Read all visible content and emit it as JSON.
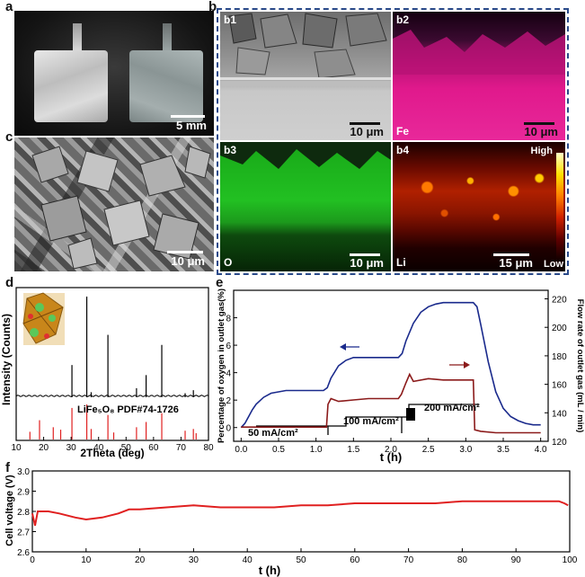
{
  "panels": {
    "a": {
      "label": "a",
      "scale": "5 mm"
    },
    "b": {
      "label": "b"
    },
    "b1": {
      "label": "b1",
      "scale": "10 μm"
    },
    "b2": {
      "label": "b2",
      "scale": "10 μm",
      "element": "Fe"
    },
    "b3": {
      "label": "b3",
      "scale": "10 μm",
      "element": "O"
    },
    "b4": {
      "label": "b4",
      "scale": "15 μm",
      "element": "Li",
      "high": "High",
      "low": "Low"
    },
    "c": {
      "label": "c",
      "scale": "10 μm"
    },
    "d": {
      "label": "d"
    },
    "e": {
      "label": "e"
    },
    "f": {
      "label": "f"
    }
  },
  "colors": {
    "navy": "#1a2a8c",
    "maroon": "#8b1a1a",
    "red": "#e02020",
    "fe": "#e0198c",
    "o": "#22c022"
  },
  "chart_data": [
    {
      "id": "d",
      "type": "line",
      "xlabel": "2Theta (deg)",
      "ylabel": "Intensity (Counts)",
      "xlim": [
        10,
        80
      ],
      "xticks": [
        "10",
        "20",
        "30",
        "40",
        "50",
        "60",
        "70",
        "80"
      ],
      "reference_label": "LiFe₅O₈ PDF#74-1726",
      "peaks": [
        {
          "x": 30.3,
          "h": 0.32
        },
        {
          "x": 35.7,
          "h": 1.0
        },
        {
          "x": 37.3,
          "h": 0.05
        },
        {
          "x": 43.4,
          "h": 0.62
        },
        {
          "x": 53.8,
          "h": 0.09
        },
        {
          "x": 57.3,
          "h": 0.22
        },
        {
          "x": 63.0,
          "h": 0.52
        },
        {
          "x": 71.5,
          "h": 0.04
        },
        {
          "x": 74.5,
          "h": 0.07
        }
      ],
      "reference_lines": [
        {
          "x": 15.0,
          "h": 0.22
        },
        {
          "x": 18.5,
          "h": 0.55
        },
        {
          "x": 23.5,
          "h": 0.35
        },
        {
          "x": 26.2,
          "h": 0.28
        },
        {
          "x": 30.3,
          "h": 0.9
        },
        {
          "x": 35.7,
          "h": 1.0
        },
        {
          "x": 37.3,
          "h": 0.3
        },
        {
          "x": 43.4,
          "h": 0.7
        },
        {
          "x": 45.5,
          "h": 0.2
        },
        {
          "x": 53.8,
          "h": 0.35
        },
        {
          "x": 57.3,
          "h": 0.5
        },
        {
          "x": 63.0,
          "h": 0.75
        },
        {
          "x": 71.5,
          "h": 0.25
        },
        {
          "x": 74.5,
          "h": 0.3
        },
        {
          "x": 75.5,
          "h": 0.18
        }
      ]
    },
    {
      "id": "e",
      "type": "line",
      "xlabel": "t (h)",
      "ylabel_left": "Percentage of oxygen in outlet gas(%)",
      "ylabel_right": "Flow rate of outlet gas (mL / min)",
      "xlim": [
        -0.1,
        4.1
      ],
      "ylim_left": [
        -1,
        10
      ],
      "ylim_right": [
        120,
        226
      ],
      "xticks": [
        "0.0",
        "0.5",
        "1.0",
        "1.5",
        "2.0",
        "2.5",
        "3.0",
        "3.5",
        "4.0"
      ],
      "yticks_left": [
        "0",
        "2",
        "4",
        "6",
        "8"
      ],
      "yticks_right": [
        "120",
        "140",
        "160",
        "180",
        "200",
        "220"
      ],
      "annotations": [
        "50 mA/cm²",
        "100 mA/cm²",
        "200 mA/cm²"
      ],
      "series": [
        {
          "name": "Percentage of oxygen",
          "axis": "left",
          "color": "#1a2a8c",
          "x": [
            0.0,
            0.05,
            0.1,
            0.15,
            0.2,
            0.3,
            0.4,
            0.5,
            0.6,
            0.7,
            0.8,
            0.9,
            1.0,
            1.1,
            1.15,
            1.2,
            1.3,
            1.4,
            1.5,
            1.6,
            1.7,
            1.8,
            1.9,
            2.0,
            2.1,
            2.15,
            2.2,
            2.3,
            2.4,
            2.5,
            2.6,
            2.7,
            2.8,
            2.9,
            3.0,
            3.1,
            3.15,
            3.2,
            3.3,
            3.4,
            3.5,
            3.6,
            3.7,
            3.8,
            3.9,
            4.0
          ],
          "y": [
            0.0,
            0.3,
            0.8,
            1.3,
            1.7,
            2.2,
            2.5,
            2.6,
            2.7,
            2.7,
            2.7,
            2.7,
            2.7,
            2.7,
            2.9,
            3.6,
            4.5,
            4.9,
            5.1,
            5.1,
            5.1,
            5.1,
            5.1,
            5.1,
            5.1,
            5.4,
            6.3,
            7.6,
            8.4,
            8.8,
            9.0,
            9.1,
            9.1,
            9.1,
            9.1,
            9.1,
            8.8,
            7.5,
            4.8,
            2.6,
            1.4,
            0.8,
            0.5,
            0.3,
            0.2,
            0.2
          ]
        },
        {
          "name": "Flow rate",
          "axis": "right",
          "color": "#8b1a1a",
          "x": [
            0.0,
            0.3,
            0.6,
            1.0,
            1.1,
            1.14,
            1.16,
            1.2,
            1.3,
            1.5,
            1.7,
            2.0,
            2.1,
            2.14,
            2.2,
            2.25,
            2.3,
            2.5,
            2.7,
            3.0,
            3.1,
            3.12,
            3.2,
            3.4,
            3.6,
            3.8,
            4.0
          ],
          "y": [
            130,
            130,
            130,
            130,
            130,
            130,
            146,
            150,
            148,
            149,
            150,
            150,
            150,
            153,
            161,
            167,
            162,
            164,
            163,
            163,
            163,
            128,
            127,
            126,
            126,
            126,
            126
          ]
        }
      ]
    },
    {
      "id": "f",
      "type": "line",
      "xlabel": "t (h)",
      "ylabel": "Cell voltage (V)",
      "xlim": [
        0,
        100
      ],
      "ylim": [
        2.6,
        3.0
      ],
      "xticks": [
        "0",
        "10",
        "20",
        "30",
        "40",
        "50",
        "60",
        "70",
        "80",
        "90",
        "100"
      ],
      "yticks": [
        "2.6",
        "2.7",
        "2.8",
        "2.9",
        "3.0"
      ],
      "series": [
        {
          "name": "Cell voltage",
          "color": "#e02020",
          "x": [
            0,
            0.5,
            1,
            3,
            5,
            8,
            10,
            13,
            16,
            18,
            20,
            25,
            30,
            35,
            40,
            45,
            50,
            55,
            60,
            65,
            70,
            75,
            80,
            85,
            90,
            95,
            98,
            99,
            99.7
          ],
          "y": [
            2.79,
            2.73,
            2.8,
            2.8,
            2.79,
            2.77,
            2.76,
            2.77,
            2.79,
            2.81,
            2.81,
            2.82,
            2.83,
            2.82,
            2.82,
            2.82,
            2.83,
            2.83,
            2.84,
            2.84,
            2.84,
            2.84,
            2.85,
            2.85,
            2.85,
            2.85,
            2.85,
            2.84,
            2.83
          ]
        }
      ]
    }
  ]
}
